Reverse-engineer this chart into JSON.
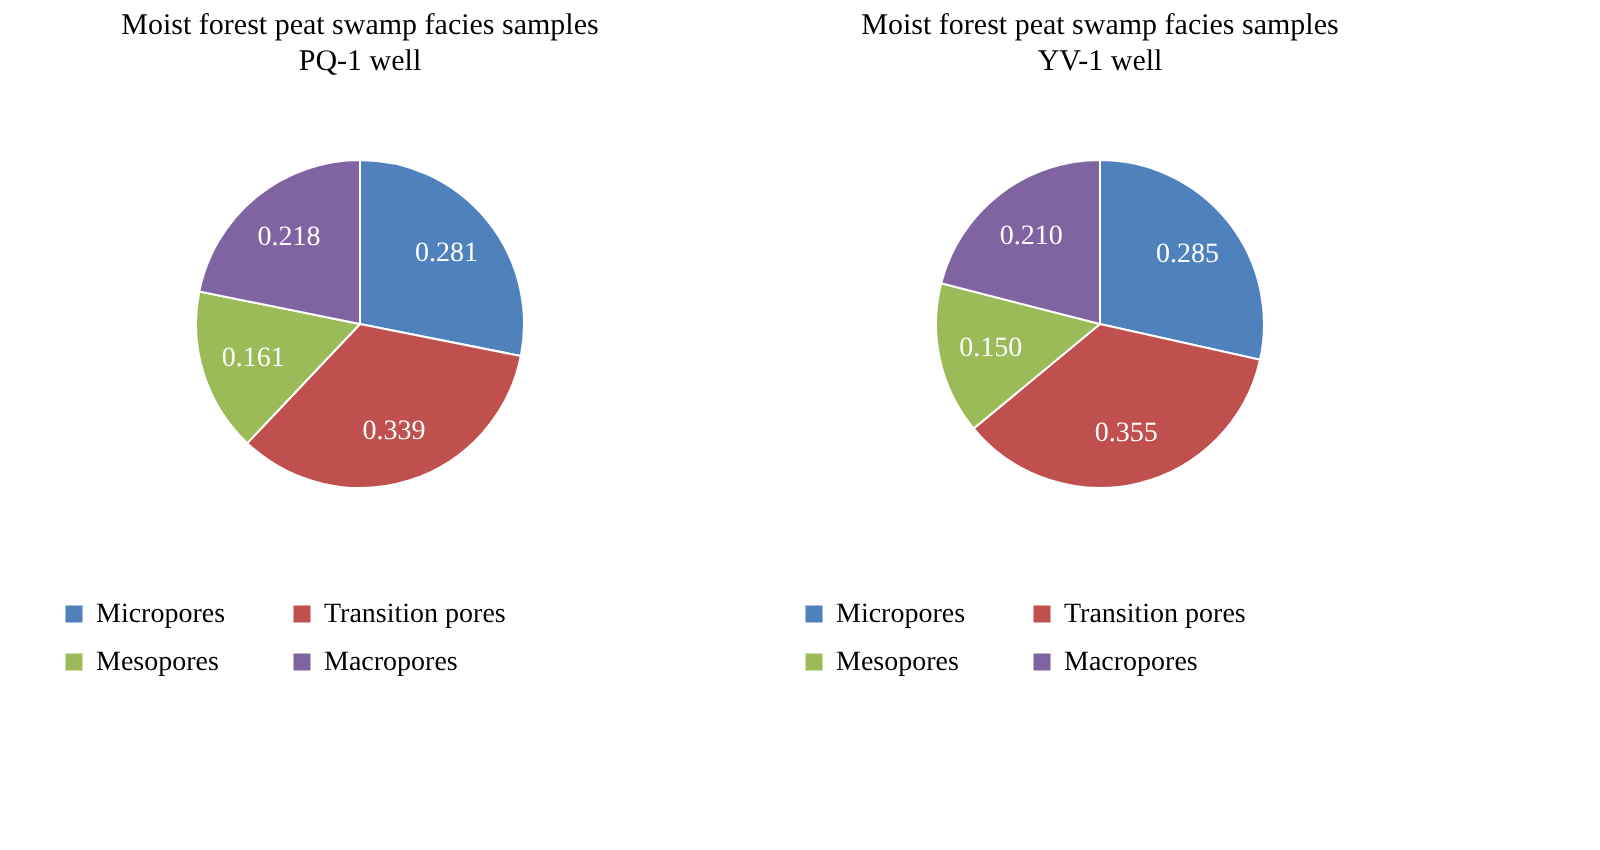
{
  "chart_data": [
    {
      "type": "pie",
      "title": "Moist forest peat swamp facies samples",
      "subtitle": "PQ-1 well",
      "categories": [
        "Micropores",
        "Transition pores",
        "Mesopores",
        "Macropores"
      ],
      "values": [
        0.281,
        0.339,
        0.161,
        0.218
      ],
      "value_labels": [
        "0.281",
        "0.339",
        "0.161",
        "0.218"
      ],
      "colors": [
        "#4f81bd",
        "#c0504d",
        "#9bbb59",
        "#8064a2"
      ],
      "legend": "bottom"
    },
    {
      "type": "pie",
      "title": "Moist forest peat swamp facies samples",
      "subtitle": "YV-1 well",
      "categories": [
        "Micropores",
        "Transition pores",
        "Mesopores",
        "Macropores"
      ],
      "values": [
        0.285,
        0.355,
        0.15,
        0.21
      ],
      "value_labels": [
        "0.285",
        "0.355",
        "0.150",
        "0.210"
      ],
      "colors": [
        "#4f81bd",
        "#c0504d",
        "#9bbb59",
        "#8064a2"
      ],
      "legend": "bottom"
    }
  ]
}
